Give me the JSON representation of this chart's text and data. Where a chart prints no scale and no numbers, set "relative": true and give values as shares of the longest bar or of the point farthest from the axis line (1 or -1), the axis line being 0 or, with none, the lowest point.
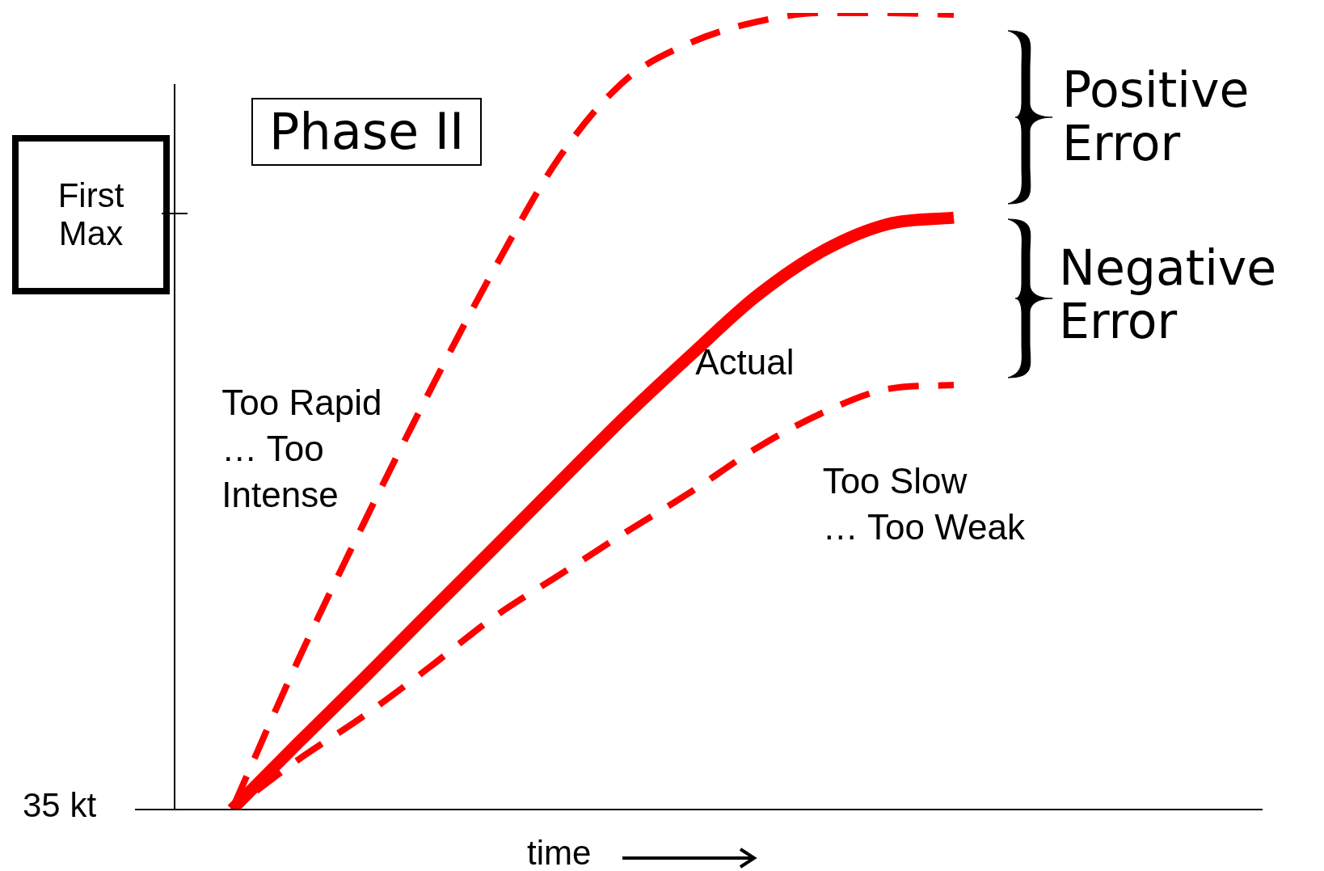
{
  "chart_data": {
    "type": "line",
    "relative": true,
    "xlabel": "time",
    "categories": [
      null,
      null,
      null,
      null,
      null,
      null,
      null,
      null,
      null,
      null,
      null,
      null
    ],
    "series": [
      {
        "name": "Actual",
        "color": "#ff0000",
        "line_style": "solid",
        "values": [
          0,
          0.083,
          0.164,
          0.247,
          0.329,
          0.412,
          0.494,
          0.571,
          0.645,
          0.701,
          0.735,
          0.743
        ]
      },
      {
        "name": "Too Rapid\n… Too\nIntense",
        "color": "#ff0000",
        "line_style": "dashed",
        "values": [
          0,
          0.186,
          0.358,
          0.523,
          0.679,
          0.82,
          0.916,
          0.963,
          0.989,
          1.0,
          1.0,
          0.998
        ]
      },
      {
        "name": "Too Slow\n… Too Weak",
        "color": "#ff0000",
        "line_style": "dashed",
        "values": [
          0,
          0.062,
          0.117,
          0.178,
          0.242,
          0.295,
          0.348,
          0.399,
          0.454,
          0.498,
          0.528,
          0.533
        ]
      }
    ],
    "ref_lines": [
      {
        "axis": "y",
        "value": 0,
        "label": "35 kt"
      }
    ],
    "annotations": [
      "Phase II",
      "Positive\nError",
      "Negative\nError",
      "First\nMax"
    ],
    "marker": "none",
    "legend": false
  }
}
